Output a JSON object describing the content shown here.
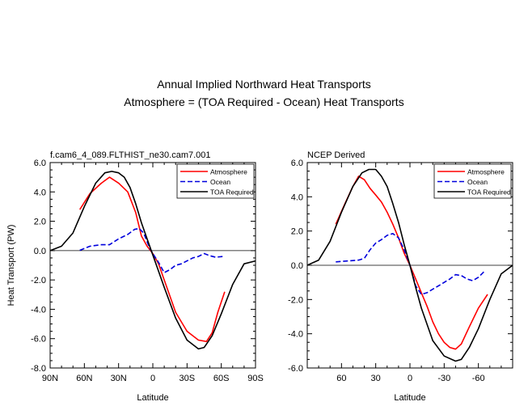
{
  "figure": {
    "title_line1": "Annual Implied Northward Heat Transports",
    "title_line2": "Atmosphere = (TOA Required - Ocean) Heat Transports"
  },
  "colors": {
    "atmosphere": "#ff0000",
    "ocean": "#0000dd",
    "toa": "#000000"
  },
  "chart_data": [
    {
      "type": "line",
      "subtitle": "f.cam6_4_089.FLTHIST_ne30.cam7.001",
      "xlabel": "Latitude",
      "ylabel": "Heat Transport (PW)",
      "xlim": [
        90,
        -90
      ],
      "ylim": [
        -8,
        6
      ],
      "xticks": [
        90,
        60,
        30,
        0,
        -30,
        -60,
        -90
      ],
      "xtick_labels": [
        "90N",
        "60N",
        "30N",
        "0",
        "30S",
        "60S",
        "90S"
      ],
      "yticks": [
        -8,
        -6,
        -4,
        -2,
        0,
        2,
        4,
        6
      ],
      "ytick_labels": [
        "-8.0",
        "-6.0",
        "-4.0",
        "-2.0",
        "0.0",
        "2.0",
        "4.0",
        "6.0"
      ],
      "legend": [
        "Atmosphere",
        "Ocean",
        "TOA Required"
      ],
      "series": [
        {
          "name": "Atmosphere",
          "style": "solid",
          "colorKey": "atmosphere",
          "x": [
            64,
            55,
            45,
            38,
            30,
            22,
            15,
            10,
            5,
            0,
            -5,
            -10,
            -20,
            -30,
            -40,
            -47,
            -52,
            -57,
            -63
          ],
          "y": [
            2.8,
            3.9,
            4.6,
            5.0,
            4.6,
            4.0,
            2.6,
            1.0,
            0.3,
            -0.2,
            -0.9,
            -2.0,
            -4.2,
            -5.5,
            -6.1,
            -6.2,
            -5.6,
            -4.2,
            -2.8
          ]
        },
        {
          "name": "Ocean",
          "style": "dashed",
          "colorKey": "ocean",
          "x": [
            64,
            55,
            45,
            38,
            30,
            22,
            16,
            12,
            8,
            3,
            0,
            -5,
            -10,
            -15,
            -20,
            -25,
            -30,
            -35,
            -40,
            -45,
            -50,
            -55,
            -62
          ],
          "y": [
            0.02,
            0.3,
            0.4,
            0.4,
            0.8,
            1.1,
            1.45,
            1.5,
            1.2,
            0.2,
            -0.2,
            -0.8,
            -1.5,
            -1.3,
            -1.0,
            -0.9,
            -0.7,
            -0.5,
            -0.4,
            -0.2,
            -0.35,
            -0.45,
            -0.4
          ]
        },
        {
          "name": "TOA Required",
          "style": "solid",
          "colorKey": "toa",
          "x": [
            90,
            80,
            70,
            60,
            50,
            42,
            36,
            30,
            25,
            20,
            15,
            10,
            5,
            0,
            -5,
            -10,
            -20,
            -30,
            -40,
            -45,
            -52,
            -60,
            -70,
            -80,
            -90
          ],
          "y": [
            0,
            0.3,
            1.2,
            3.0,
            4.6,
            5.3,
            5.4,
            5.3,
            5.0,
            4.3,
            3.2,
            1.9,
            0.8,
            -0.3,
            -1.4,
            -2.5,
            -4.6,
            -6.1,
            -6.7,
            -6.6,
            -5.8,
            -4.3,
            -2.3,
            -0.9,
            -0.7
          ]
        }
      ]
    },
    {
      "type": "line",
      "subtitle": "NCEP Derived",
      "xlabel": "Latitude",
      "ylabel": "",
      "xlim": [
        90,
        -90
      ],
      "ylim": [
        -6,
        6
      ],
      "xticks": [
        60,
        30,
        0,
        -30,
        -60
      ],
      "xtick_labels": [
        "60",
        "30",
        "0",
        "-30",
        "-60"
      ],
      "yticks": [
        -6,
        -4,
        -2,
        0,
        2,
        4,
        6
      ],
      "ytick_labels": [
        "-6.0",
        "-4.0",
        "-2.0",
        "0.0",
        "2.0",
        "4.0",
        "6.0"
      ],
      "legend": [
        "Atmosphere",
        "Ocean",
        "TOA Required"
      ],
      "series": [
        {
          "name": "Atmosphere",
          "style": "solid",
          "colorKey": "atmosphere",
          "x": [
            65,
            57,
            50,
            45,
            40,
            35,
            30,
            25,
            20,
            15,
            10,
            5,
            0,
            -5,
            -10,
            -15,
            -20,
            -25,
            -30,
            -35,
            -40,
            -45,
            -52,
            -60,
            -68
          ],
          "y": [
            2.4,
            3.6,
            4.6,
            5.2,
            5.0,
            4.5,
            4.1,
            3.7,
            3.1,
            2.4,
            1.6,
            0.7,
            0.0,
            -0.8,
            -1.6,
            -2.4,
            -3.3,
            -4.0,
            -4.5,
            -4.8,
            -4.9,
            -4.6,
            -3.6,
            -2.5,
            -1.7
          ]
        },
        {
          "name": "Ocean",
          "style": "dashed",
          "colorKey": "ocean",
          "x": [
            65,
            55,
            45,
            40,
            35,
            30,
            25,
            20,
            15,
            10,
            5,
            0,
            -5,
            -10,
            -15,
            -20,
            -25,
            -30,
            -35,
            -40,
            -45,
            -50,
            -55,
            -60,
            -66
          ],
          "y": [
            0.2,
            0.25,
            0.3,
            0.4,
            0.9,
            1.3,
            1.5,
            1.75,
            1.85,
            1.6,
            0.9,
            0.0,
            -1.2,
            -1.7,
            -1.6,
            -1.4,
            -1.2,
            -1.0,
            -0.8,
            -0.55,
            -0.6,
            -0.8,
            -0.9,
            -0.7,
            -0.3
          ]
        },
        {
          "name": "TOA Required",
          "style": "solid",
          "colorKey": "toa",
          "x": [
            90,
            80,
            70,
            60,
            50,
            42,
            36,
            30,
            25,
            20,
            15,
            10,
            5,
            0,
            -5,
            -10,
            -20,
            -30,
            -40,
            -45,
            -52,
            -60,
            -70,
            -80,
            -90
          ],
          "y": [
            0,
            0.3,
            1.4,
            3.1,
            4.6,
            5.4,
            5.6,
            5.6,
            5.2,
            4.6,
            3.6,
            2.5,
            1.2,
            0.0,
            -1.3,
            -2.5,
            -4.4,
            -5.3,
            -5.6,
            -5.5,
            -4.8,
            -3.7,
            -2.0,
            -0.5,
            0.0
          ]
        }
      ]
    }
  ]
}
